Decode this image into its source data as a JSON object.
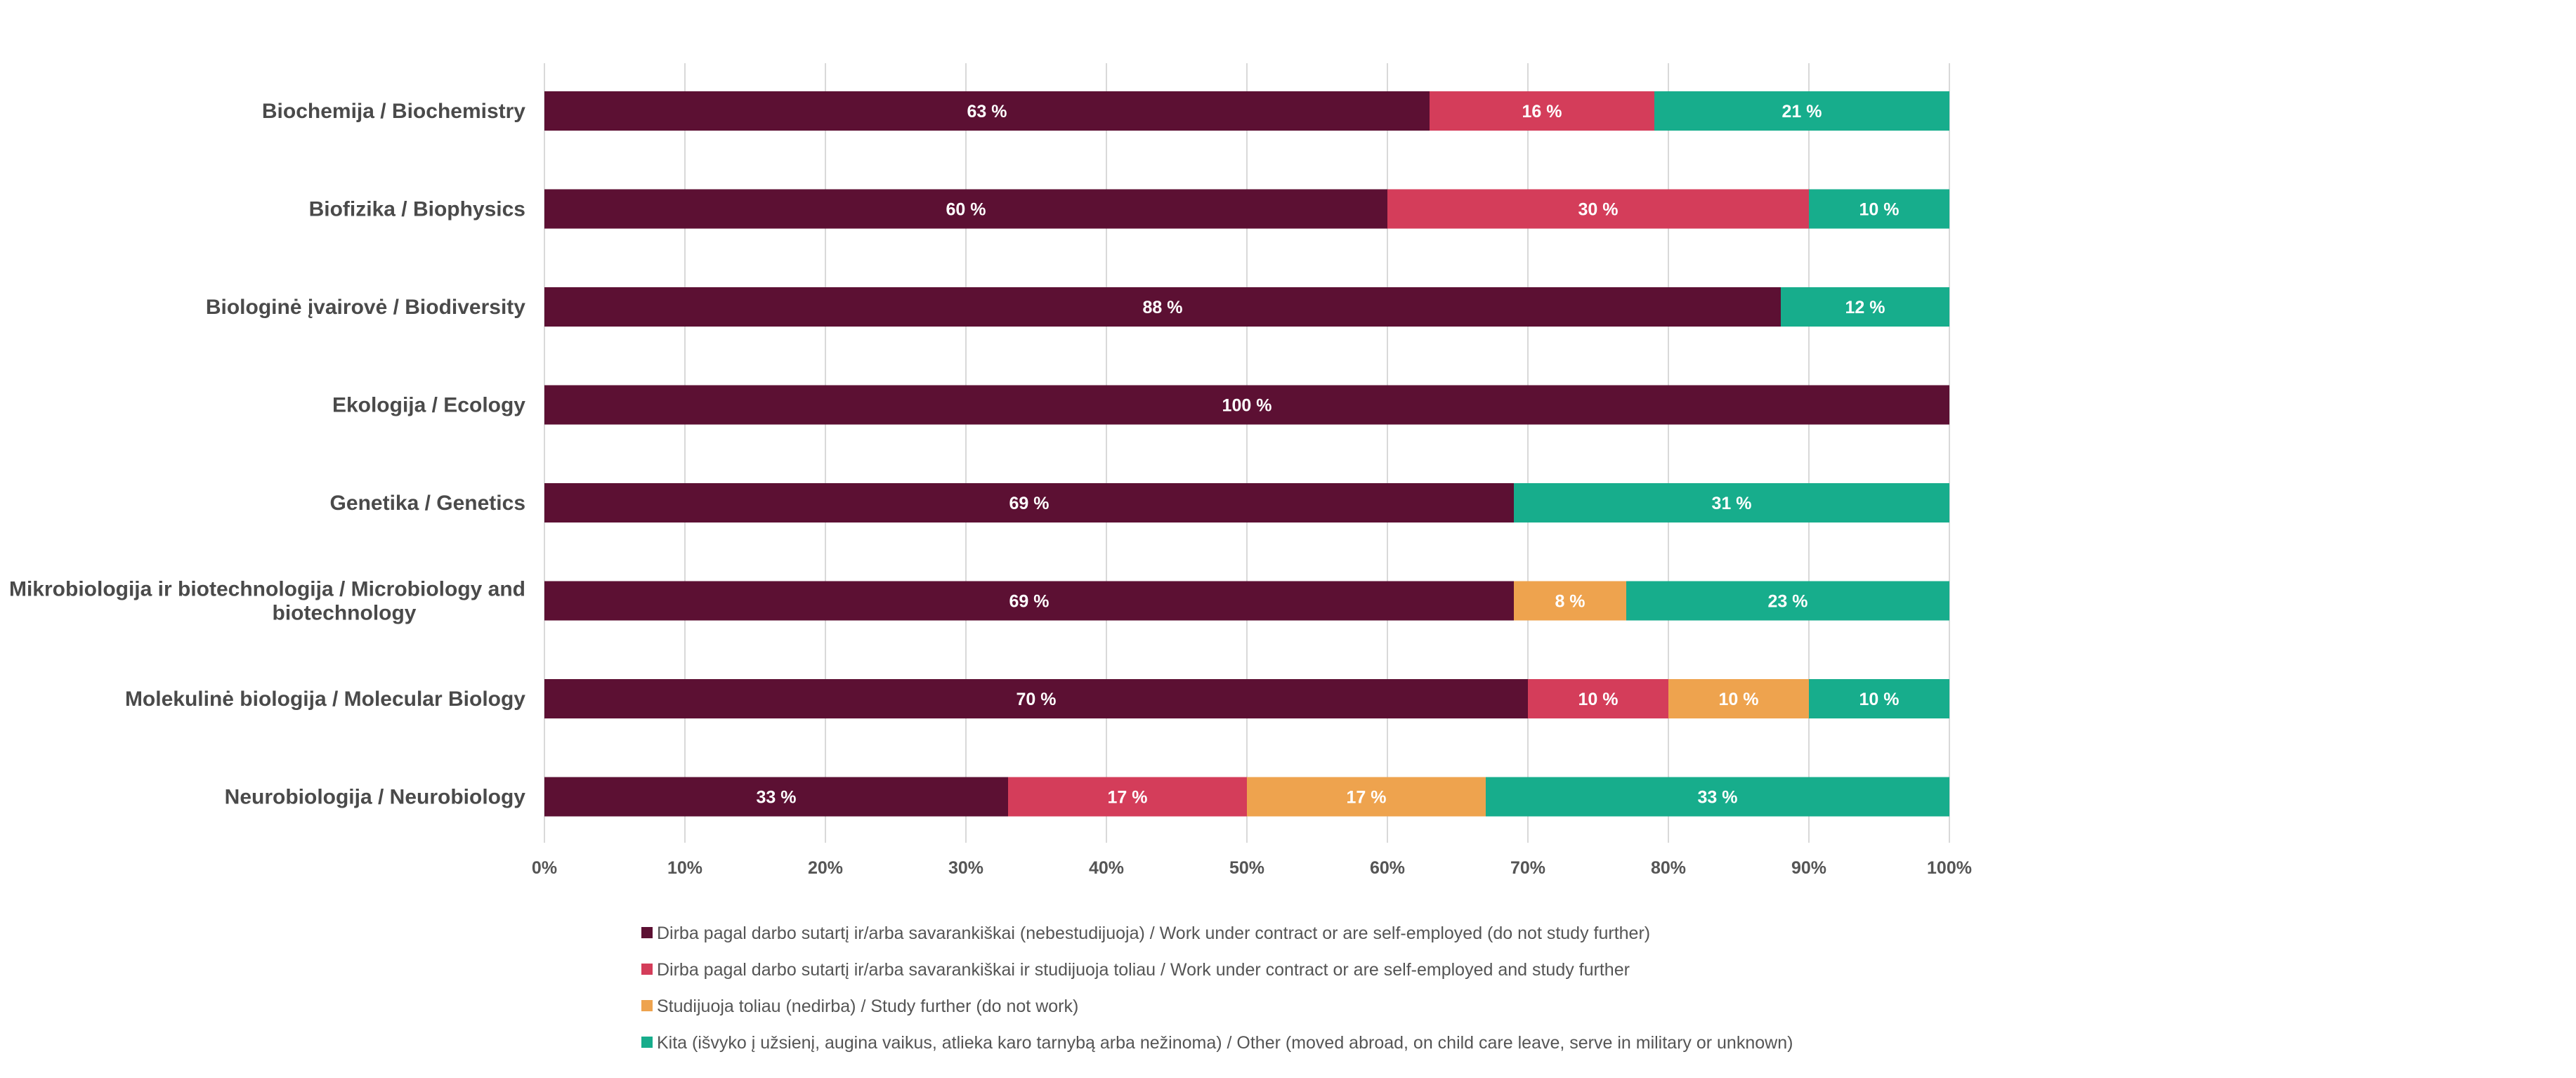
{
  "chart_data": {
    "type": "bar",
    "orientation": "horizontal",
    "stacked": true,
    "categories": [
      "Biochemija / Biochemistry",
      "Biofizika / Biophysics",
      "Biologinė įvairovė / Biodiversity",
      "Ekologija / Ecology",
      "Genetika / Genetics",
      "Mikrobiologija ir biotechnologija / Microbiology and biotechnology",
      "Molekulinė biologija / Molecular Biology",
      "Neurobiologija / Neurobiology"
    ],
    "series": [
      {
        "name": "Dirba pagal darbo sutartį ir/arba savarankiškai (nebestudijuoja) / Work under contract or are self-employed (do not study further)",
        "color": "#5c1033",
        "values": [
          63,
          60,
          88,
          100,
          69,
          69,
          70,
          33
        ]
      },
      {
        "name": "Dirba pagal darbo sutartį ir/arba savarankiškai  ir studijuoja toliau / Work under contract or are self-employed and study further",
        "color": "#d43d5a",
        "values": [
          16,
          30,
          0,
          0,
          0,
          0,
          10,
          17
        ]
      },
      {
        "name": "Studijuoja toliau (nedirba) / Study further (do not work)",
        "color": "#eea34e",
        "values": [
          0,
          0,
          0,
          0,
          0,
          8,
          10,
          17
        ]
      },
      {
        "name": "Kita (išvyko į užsienį, augina vaikus, atlieka karo tarnybą arba nežinoma) / Other (moved abroad, on child care leave, serve in military or unknown)",
        "color": "#17ad8c",
        "values": [
          21,
          10,
          12,
          0,
          31,
          23,
          10,
          33
        ]
      }
    ],
    "value_suffix": " %",
    "xlim": [
      0,
      100
    ],
    "x_ticks": [
      "0%",
      "10%",
      "20%",
      "30%",
      "40%",
      "50%",
      "60%",
      "70%",
      "80%",
      "90%",
      "100%"
    ],
    "grid": true,
    "legend_position": "bottom"
  }
}
